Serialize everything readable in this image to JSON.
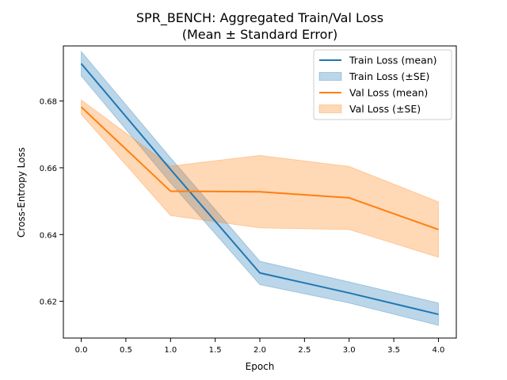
{
  "chart_data": {
    "type": "line",
    "title": "SPR_BENCH: Aggregated Train/Val Loss",
    "subtitle": "(Mean ± Standard Error)",
    "xlabel": "Epoch",
    "ylabel": "Cross-Entropy Loss",
    "xlim": [
      -0.2,
      4.2
    ],
    "ylim": [
      0.609,
      0.6965
    ],
    "x_ticks": [
      0.0,
      0.5,
      1.0,
      1.5,
      2.0,
      2.5,
      3.0,
      3.5,
      4.0
    ],
    "x_tick_labels": [
      "0.0",
      "0.5",
      "1.0",
      "1.5",
      "2.0",
      "2.5",
      "3.0",
      "3.5",
      "4.0"
    ],
    "y_ticks": [
      0.62,
      0.64,
      0.66,
      0.68
    ],
    "y_tick_labels": [
      "0.62",
      "0.64",
      "0.66",
      "0.68"
    ],
    "grid": false,
    "legend_position": "upper right",
    "x": [
      0,
      1,
      2,
      3,
      4
    ],
    "series": [
      {
        "name": "Train Loss (mean)",
        "band_name": "Train Loss (±SE)",
        "color": "#1f77b4",
        "values": [
          0.6912,
          0.6595,
          0.6285,
          0.6225,
          0.6161
        ],
        "lower": [
          0.6875,
          0.6555,
          0.625,
          0.6195,
          0.6128
        ],
        "upper": [
          0.6948,
          0.663,
          0.632,
          0.6258,
          0.6195
        ]
      },
      {
        "name": "Val Loss (mean)",
        "band_name": "Val Loss (±SE)",
        "color": "#ff7f0e",
        "values": [
          0.6782,
          0.653,
          0.6528,
          0.651,
          0.6415
        ],
        "lower": [
          0.676,
          0.6457,
          0.642,
          0.6415,
          0.6332
        ],
        "upper": [
          0.6803,
          0.6605,
          0.6637,
          0.6604,
          0.6498
        ]
      }
    ]
  }
}
